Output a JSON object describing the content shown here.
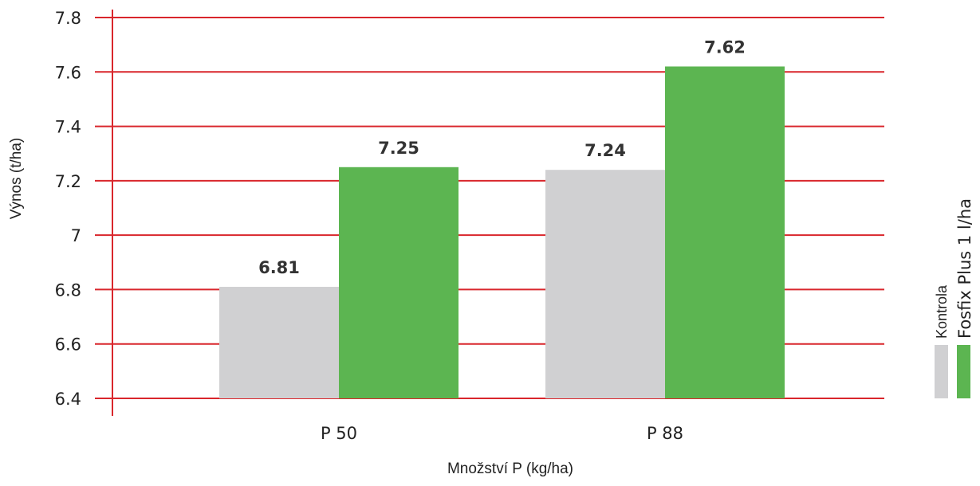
{
  "chart_data": {
    "type": "bar",
    "categories": [
      "P 50",
      "P 88"
    ],
    "series": [
      {
        "name": "Kontrola",
        "values": [
          6.81,
          7.24
        ],
        "color": "#d0d0d2"
      },
      {
        "name": "Fosfix Plus 1 l/ha",
        "values": [
          7.25,
          7.62
        ],
        "color": "#5cb551"
      }
    ],
    "value_labels": [
      [
        "6.81",
        "7.24"
      ],
      [
        "7.25",
        "7.62"
      ]
    ],
    "xlabel": "Množství P (kg/ha)",
    "ylabel": "Výnos (t/ha)",
    "ylim": [
      6.4,
      7.8
    ],
    "yticks": [
      {
        "value": 6.4,
        "label": "6.4"
      },
      {
        "value": 6.6,
        "label": "6.6"
      },
      {
        "value": 6.8,
        "label": "6.8"
      },
      {
        "value": 7.0,
        "label": "7"
      },
      {
        "value": 7.2,
        "label": "7.2"
      },
      {
        "value": 7.4,
        "label": "7.4"
      },
      {
        "value": 7.6,
        "label": "7.6"
      },
      {
        "value": 7.8,
        "label": "7.8"
      }
    ],
    "grid": true,
    "grid_color": "#d9262c",
    "legend_position": "right"
  }
}
